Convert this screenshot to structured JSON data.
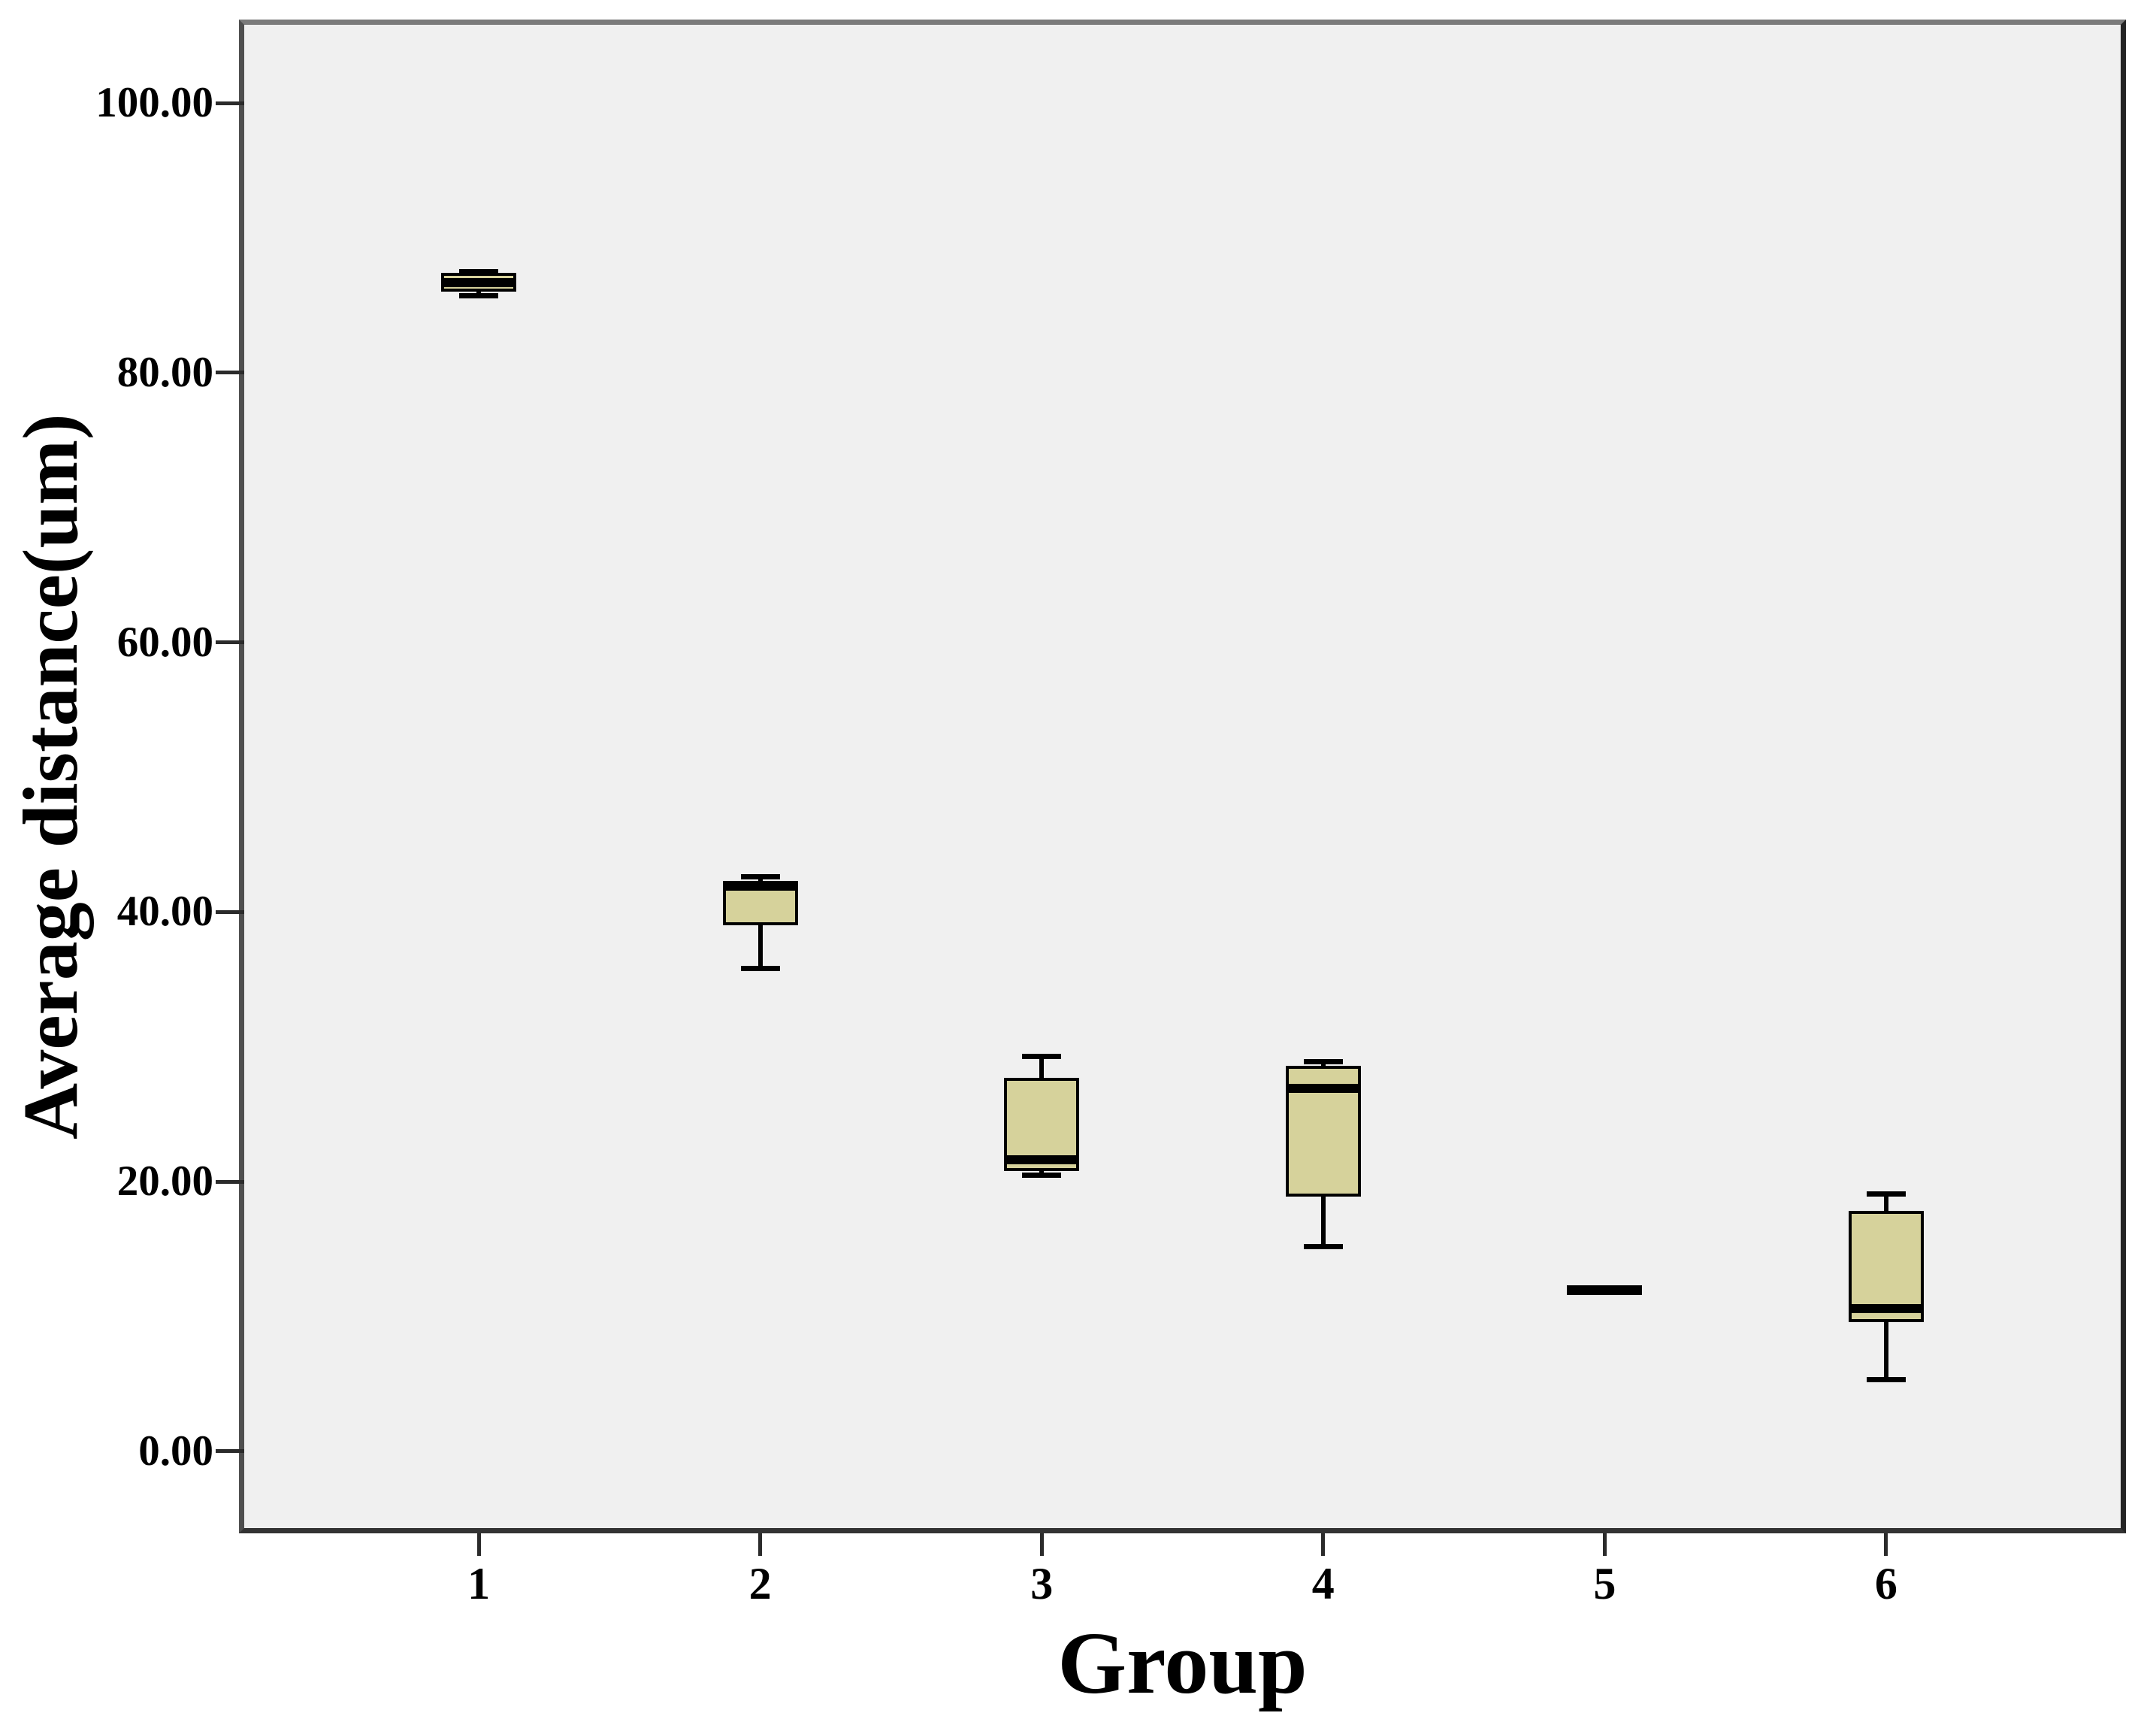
{
  "figure": {
    "background": "#ffffff"
  },
  "chart_data": {
    "type": "box",
    "title": "",
    "xlabel": "Group",
    "ylabel": "Average distance(um)",
    "categories": [
      "1",
      "2",
      "3",
      "4",
      "5",
      "6"
    ],
    "y_ticks": [
      {
        "value": 0,
        "label": "0.00"
      },
      {
        "value": 20,
        "label": "20.00"
      },
      {
        "value": 40,
        "label": "40.00"
      },
      {
        "value": 60,
        "label": "60.00"
      },
      {
        "value": 80,
        "label": "80.00"
      },
      {
        "value": 100,
        "label": "100.00"
      }
    ],
    "ylim": [
      -5.7,
      105.8
    ],
    "grid": false,
    "legend": false,
    "boxes": [
      {
        "group": "1",
        "min": 85.7,
        "q1": 86.0,
        "median": 86.7,
        "q3": 87.4,
        "max": 87.5
      },
      {
        "group": "2",
        "min": 35.8,
        "q1": 39.0,
        "median": 41.9,
        "q3": 42.3,
        "max": 42.6
      },
      {
        "group": "3",
        "min": 20.5,
        "q1": 20.8,
        "median": 21.6,
        "q3": 27.7,
        "max": 29.3
      },
      {
        "group": "4",
        "min": 15.2,
        "q1": 18.9,
        "median": 26.9,
        "q3": 28.6,
        "max": 28.9
      },
      {
        "group": "5",
        "min": 11.9,
        "q1": 11.95,
        "median": 12.0,
        "q3": 12.05,
        "max": 12.1
      },
      {
        "group": "6",
        "min": 5.3,
        "q1": 9.6,
        "median": 10.6,
        "q3": 17.8,
        "max": 19.1
      }
    ],
    "colors": {
      "box_fill": "#d6d29b",
      "box_border": "#000000",
      "median": "#000000",
      "whisker": "#000000",
      "plot_background": "#f0f0f0",
      "frame": "#4f4f4f",
      "text": "#000000"
    }
  }
}
